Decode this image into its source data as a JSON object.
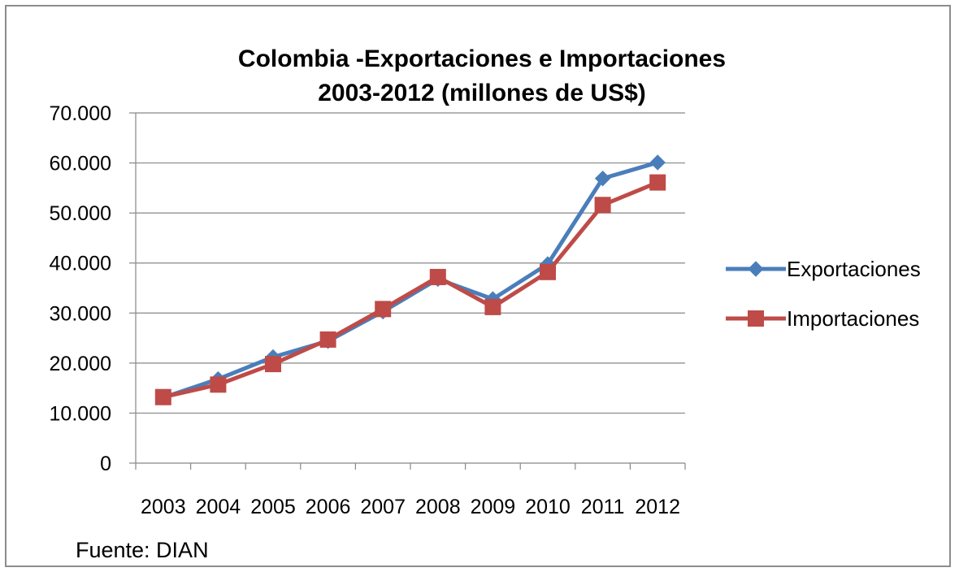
{
  "chart_data": {
    "type": "line",
    "title": [
      "Colombia -Exportaciones e Importaciones",
      "2003-2012 (millones de US$)"
    ],
    "categories": [
      "2003",
      "2004",
      "2005",
      "2006",
      "2007",
      "2008",
      "2009",
      "2010",
      "2011",
      "2012"
    ],
    "ylim": [
      0,
      70000
    ],
    "yticks": [
      0,
      10000,
      20000,
      30000,
      40000,
      50000,
      60000,
      70000
    ],
    "ytick_labels": [
      "0",
      "10.000",
      "20.000",
      "30.000",
      "40.000",
      "50.000",
      "60.000",
      "70.000"
    ],
    "grid": true,
    "legend_position": "right",
    "series": [
      {
        "name": "Exportaciones",
        "color": "#4A7EBB",
        "marker": "diamond",
        "values": [
          13100,
          16800,
          21200,
          24400,
          30300,
          36800,
          32800,
          39800,
          56900,
          60100
        ]
      },
      {
        "name": "Importaciones",
        "color": "#BE4B48",
        "marker": "square",
        "values": [
          13200,
          15700,
          19800,
          24700,
          30800,
          37200,
          31200,
          38200,
          51600,
          56100
        ]
      }
    ]
  },
  "source_note": "Fuente: DIAN"
}
